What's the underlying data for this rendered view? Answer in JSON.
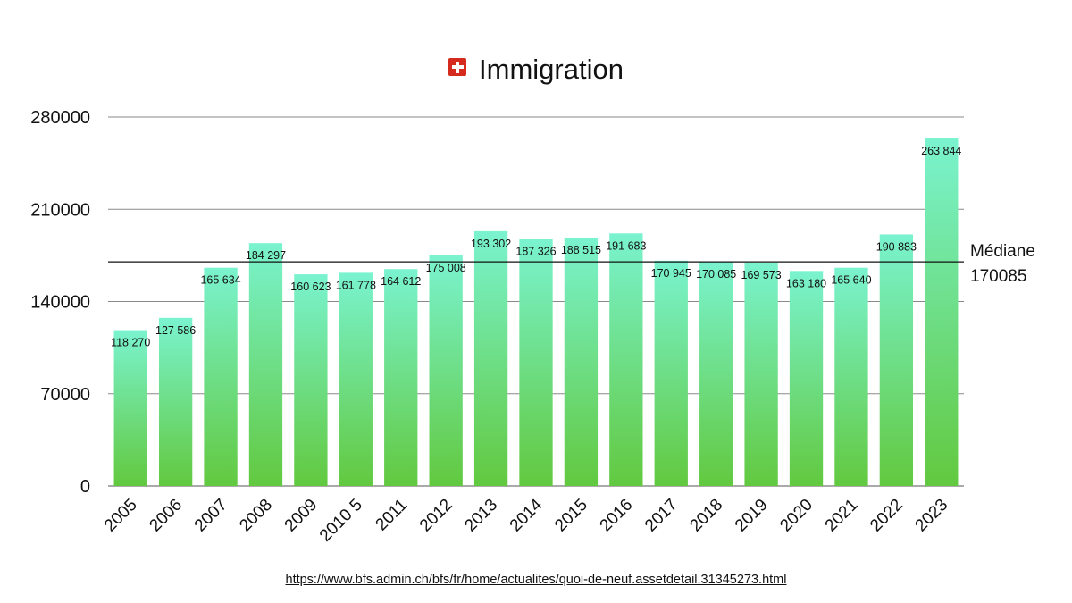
{
  "chart_data": {
    "type": "bar",
    "title": "Immigration",
    "title_icon": "swiss-flag-icon",
    "categories": [
      "2005",
      "2006",
      "2007",
      "2008",
      "2009",
      "2010 5",
      "2011",
      "2012",
      "2013",
      "2014",
      "2015",
      "2016",
      "2017",
      "2018",
      "2019",
      "2020",
      "2021",
      "2022",
      "2023"
    ],
    "values": [
      118270,
      127586,
      165634,
      184297,
      160623,
      161778,
      164612,
      175008,
      193302,
      187326,
      188515,
      191683,
      170945,
      170085,
      169573,
      163180,
      165640,
      190883,
      263844
    ],
    "data_labels": [
      "118 270",
      "127 586",
      "165 634",
      "184 297",
      "160 623",
      "161 778",
      "164 612",
      "175 008",
      "193 302",
      "187 326",
      "188 515",
      "191 683",
      "170 945",
      "170 085",
      "169 573",
      "163 180",
      "165 640",
      "190 883",
      "263 844"
    ],
    "ylim": [
      0,
      280000
    ],
    "yticks": [
      0,
      70000,
      140000,
      210000,
      280000
    ],
    "ytick_labels": [
      "0",
      "70000",
      "140000",
      "210000",
      "280000"
    ],
    "grid": true,
    "bar_gradient": {
      "top": "#7af3cf",
      "bottom": "#62c93f"
    },
    "reference_line": {
      "value": 170085,
      "label_line1": "Médiane",
      "label_line2": "170085",
      "color": "#111111"
    },
    "source_url": "https://www.bfs.admin.ch/bfs/fr/home/actualites/quoi-de-neuf.assetdetail.31345273.html"
  }
}
